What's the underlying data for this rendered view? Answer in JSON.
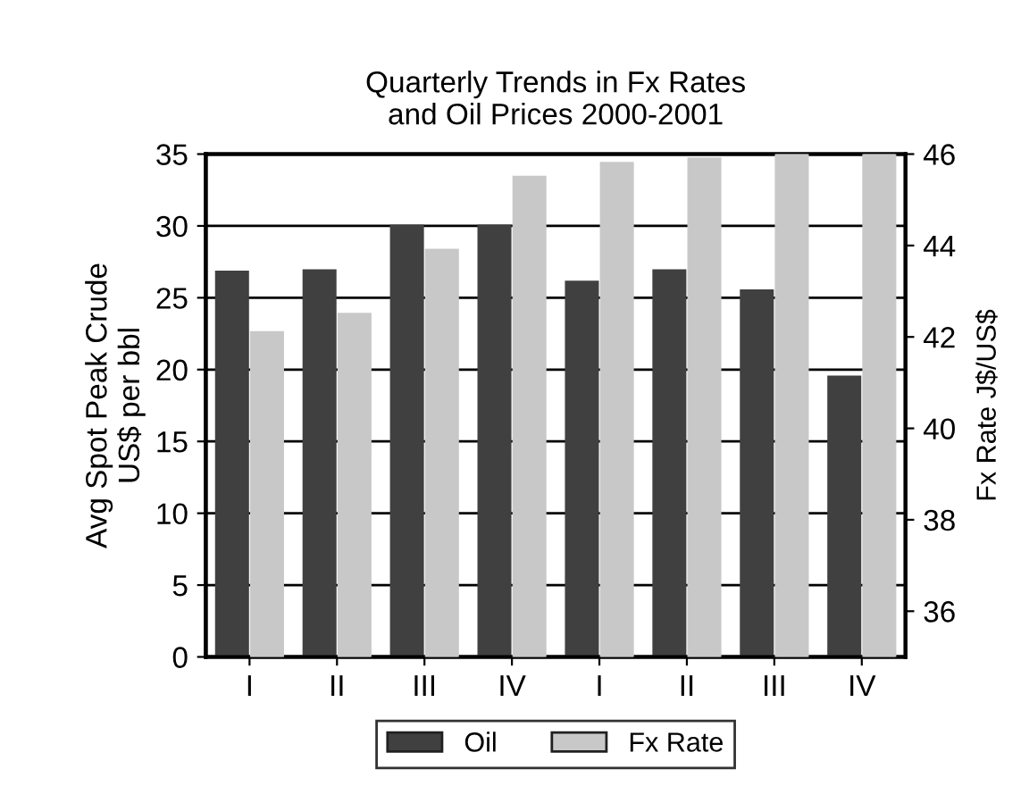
{
  "chart_data": {
    "type": "bar",
    "title": "Quarterly Trends in Fx Rates\nand Oil Prices 2000-2001",
    "ylabel": "Avg Spot Peak Crude\nUS$ per bbl",
    "y2label": "Fx Rate J$/US$",
    "categories": [
      "I",
      "II",
      "III",
      "IV",
      "I",
      "II",
      "III",
      "IV"
    ],
    "series": [
      {
        "name": "Oil",
        "color": "#404040",
        "values": [
          26.8,
          26.9,
          30,
          30,
          26.1,
          26.9,
          25.5,
          19.5
        ]
      },
      {
        "name": "Fx Rate",
        "color": "#c8c8c8",
        "axis": "y2",
        "values": [
          42.1,
          42.5,
          43.9,
          45.5,
          45.8,
          45.9,
          46,
          46
        ]
      }
    ],
    "ylim": [
      0,
      35
    ],
    "yticks": [
      0,
      5,
      10,
      15,
      20,
      25,
      30,
      35
    ],
    "y2lim": [
      35,
      46
    ],
    "y2ticks": [
      36,
      38,
      40,
      42,
      44,
      46
    ],
    "grid": "y",
    "legend": "bottom"
  }
}
